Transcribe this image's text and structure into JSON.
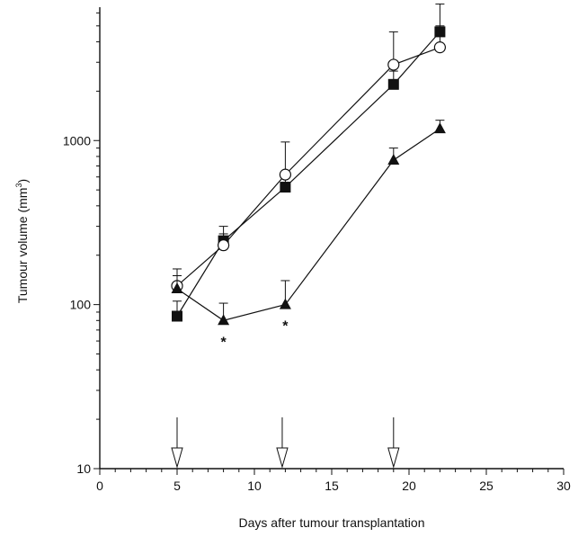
{
  "chart_data": {
    "type": "line",
    "title": "",
    "xlabel": "Days after tumour transplantation",
    "ylabel": "Tumour volume (mm",
    "ylabel_sup": "3",
    "ylabel_close": ")",
    "xlim": [
      0,
      30
    ],
    "ylim": [
      10,
      6500
    ],
    "yscale": "log",
    "grid": false,
    "xticks": [
      0,
      5,
      10,
      15,
      20,
      25,
      30
    ],
    "xtick_labels": [
      "0",
      "5",
      "10",
      "15",
      "20",
      "25",
      "30"
    ],
    "yticks": [
      10,
      100,
      1000
    ],
    "ytick_labels": [
      "10",
      "100",
      "1000"
    ],
    "series": [
      {
        "marker": "square-filled",
        "x": [
          5,
          8,
          12,
          19,
          22
        ],
        "y": [
          85,
          245,
          520,
          2200,
          4600
        ],
        "err_upper": [
          105,
          300,
          620,
          2650,
          6800
        ]
      },
      {
        "marker": "circle-open",
        "x": [
          5,
          8,
          12,
          19,
          22
        ],
        "y": [
          130,
          230,
          620,
          2900,
          3700
        ],
        "err_upper": [
          165,
          270,
          980,
          4600,
          5000
        ]
      },
      {
        "marker": "triangle-filled",
        "x": [
          5,
          8,
          12,
          19,
          22
        ],
        "y": [
          125,
          80,
          100,
          760,
          1180
        ],
        "err_upper": [
          150,
          102,
          140,
          900,
          1330
        ]
      }
    ],
    "annotations": [
      {
        "text": "*",
        "x": 8,
        "y": 80
      },
      {
        "text": "*",
        "x": 12,
        "y": 100
      }
    ],
    "treatment_arrows_x": [
      5,
      11.8,
      19
    ]
  }
}
